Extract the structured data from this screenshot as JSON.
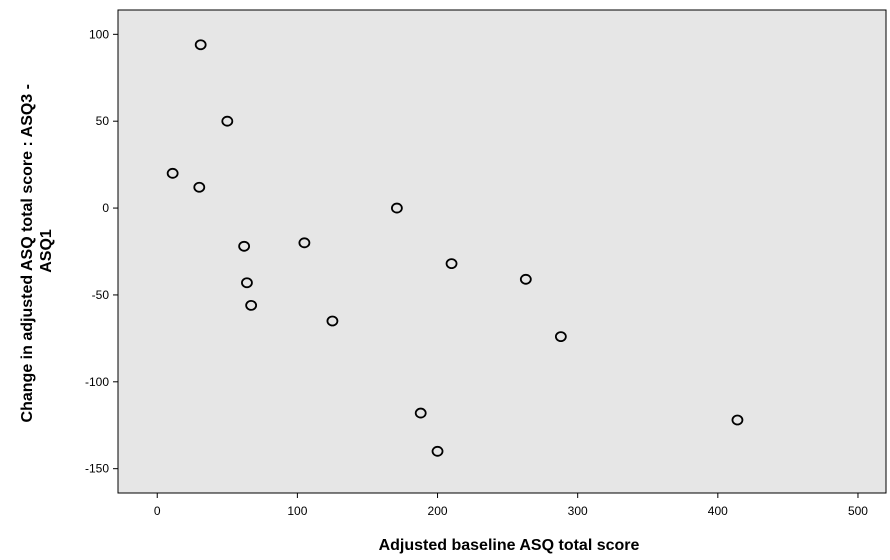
{
  "chart_data": {
    "type": "scatter",
    "title": "",
    "xlabel": "Adjusted baseline ASQ total score",
    "ylabel_lines": [
      "Change in adjusted ASQ total score : ASQ3 -",
      "ASQ1"
    ],
    "xlim": [
      -28,
      520
    ],
    "ylim": [
      -164,
      114
    ],
    "xticks": [
      0,
      100,
      200,
      300,
      400,
      500
    ],
    "yticks": [
      100,
      50,
      0,
      -50,
      -100,
      -150
    ],
    "grid": false,
    "legend": "none",
    "plot_background": "#e6e6e6",
    "marker_color": "#000000",
    "points": [
      {
        "x": 31,
        "y": 94
      },
      {
        "x": 50,
        "y": 50
      },
      {
        "x": 11,
        "y": 20
      },
      {
        "x": 30,
        "y": 12
      },
      {
        "x": 171,
        "y": 0
      },
      {
        "x": 62,
        "y": -22
      },
      {
        "x": 105,
        "y": -20
      },
      {
        "x": 210,
        "y": -32
      },
      {
        "x": 263,
        "y": -41
      },
      {
        "x": 64,
        "y": -43
      },
      {
        "x": 67,
        "y": -56
      },
      {
        "x": 125,
        "y": -65
      },
      {
        "x": 288,
        "y": -74
      },
      {
        "x": 188,
        "y": -118
      },
      {
        "x": 414,
        "y": -122
      },
      {
        "x": 200,
        "y": -140
      }
    ]
  }
}
